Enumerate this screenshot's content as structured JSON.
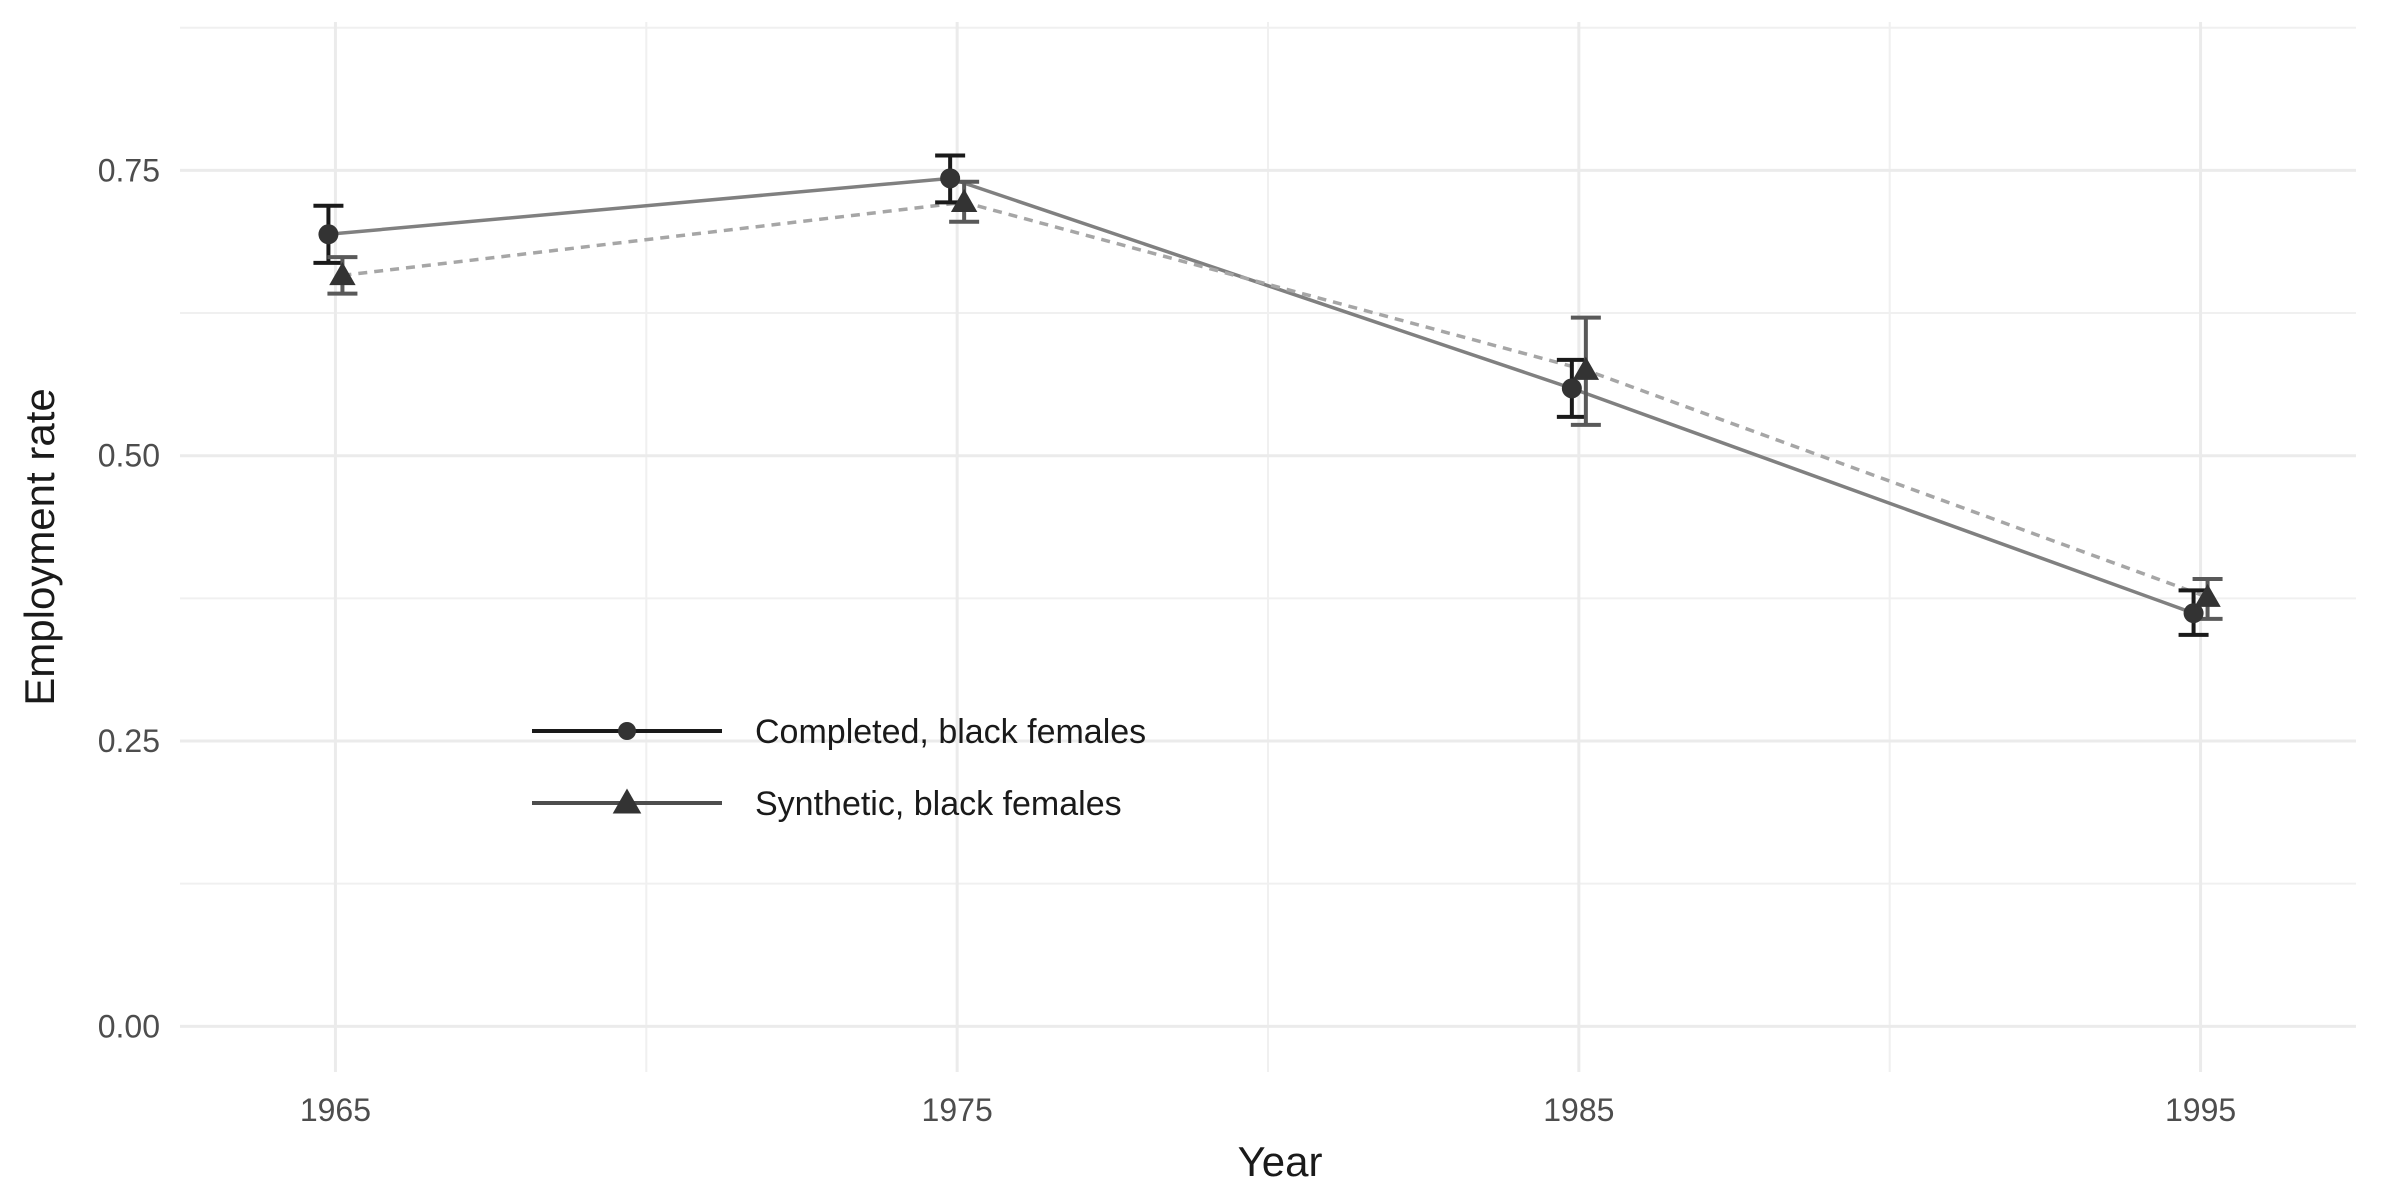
{
  "chart_data": {
    "type": "line",
    "title": "",
    "xlabel": "Year",
    "ylabel": "Employment rate",
    "x_ticks": [
      "1965",
      "1975",
      "1985",
      "1995"
    ],
    "y_ticks": [
      "0.00",
      "0.25",
      "0.50",
      "0.75"
    ],
    "xlim": [
      1962.5,
      1997.5
    ],
    "ylim": [
      -0.04,
      0.88
    ],
    "grid": true,
    "legend_position": "bottom-left-inside",
    "series": [
      {
        "name": "Completed, black females",
        "marker": "circle",
        "line_style": "solid",
        "line_color": "#808080",
        "marker_color": "#333333",
        "errorbar_color": "#1a1a1a",
        "legend_line_color": "#1a1a1a",
        "x": [
          1965,
          1975,
          1985,
          1995
        ],
        "y": [
          0.694,
          0.743,
          0.559,
          0.362
        ],
        "y_low": [
          0.669,
          0.722,
          0.534,
          0.343
        ],
        "y_high": [
          0.719,
          0.763,
          0.584,
          0.382
        ]
      },
      {
        "name": "Synthetic, black females",
        "marker": "triangle",
        "line_style": "dashed",
        "line_color": "#a6a6a6",
        "marker_color": "#333333",
        "errorbar_color": "#595959",
        "legend_line_color": "#4d4d4d",
        "x": [
          1965,
          1975,
          1985,
          1995
        ],
        "y": [
          0.658,
          0.722,
          0.575,
          0.376
        ],
        "y_low": [
          0.642,
          0.705,
          0.527,
          0.357
        ],
        "y_high": [
          0.674,
          0.74,
          0.621,
          0.392
        ]
      }
    ]
  }
}
